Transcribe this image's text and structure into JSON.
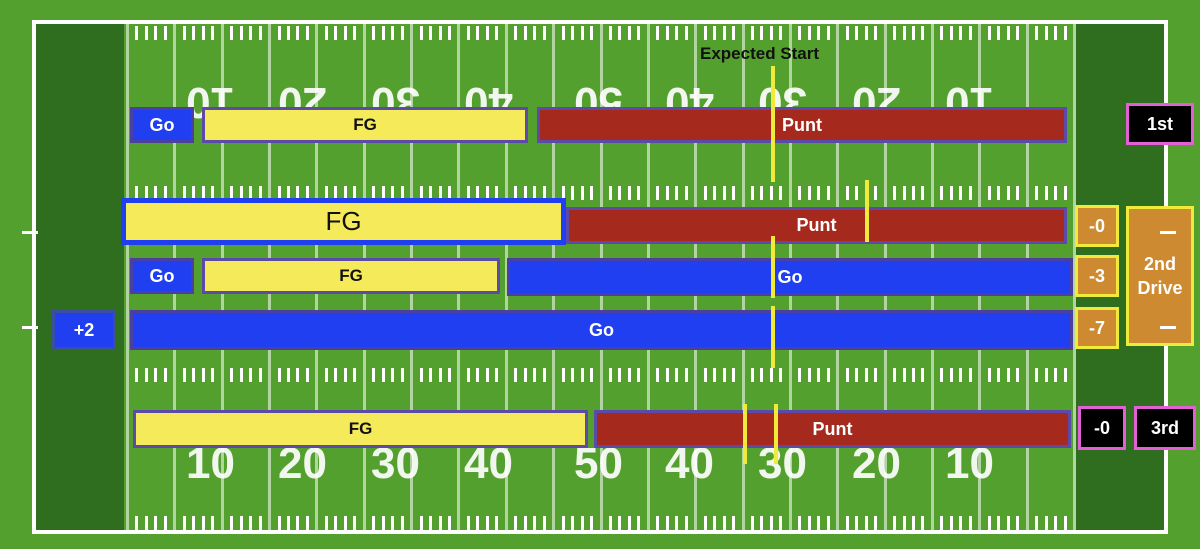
{
  "title": "Expected Start",
  "field": {
    "top_numbers": [
      "10",
      "20",
      "30",
      "40",
      "50",
      "40",
      "30",
      "20",
      "10"
    ],
    "bottom_numbers": [
      "10",
      "20",
      "30",
      "40",
      "50",
      "40",
      "30",
      "20",
      "10"
    ]
  },
  "rows": [
    {
      "badge": "1st",
      "segments": [
        {
          "label": "Go",
          "type": "go"
        },
        {
          "label": "FG",
          "type": "fg"
        },
        {
          "label": "Punt",
          "type": "punt"
        }
      ]
    },
    {
      "badge": "-0",
      "segments": [
        {
          "label": "FG",
          "type": "fg"
        },
        {
          "label": "Punt",
          "type": "punt"
        }
      ]
    },
    {
      "badge": "-3",
      "segments": [
        {
          "label": "Go",
          "type": "go"
        },
        {
          "label": "FG",
          "type": "fg"
        },
        {
          "label": "Go",
          "type": "go"
        }
      ]
    },
    {
      "badge": "-7",
      "left_badge": "+2",
      "segments": [
        {
          "label": "Go",
          "type": "go"
        }
      ]
    },
    {
      "badge": "-0",
      "badge2": "3rd",
      "segments": [
        {
          "label": "FG",
          "type": "fg"
        },
        {
          "label": "Punt",
          "type": "punt"
        }
      ]
    }
  ],
  "drive_label": "2nd Drive",
  "colors": {
    "field": "#54a02e",
    "endzone": "#2f6e1f",
    "fg": "#f4ea5a",
    "punt": "#a52a1d",
    "go": "#1f3ff0",
    "marker": "#f0ea3a",
    "badge_orange": "#cd8a30",
    "badge_outline": "#e35fd6"
  }
}
